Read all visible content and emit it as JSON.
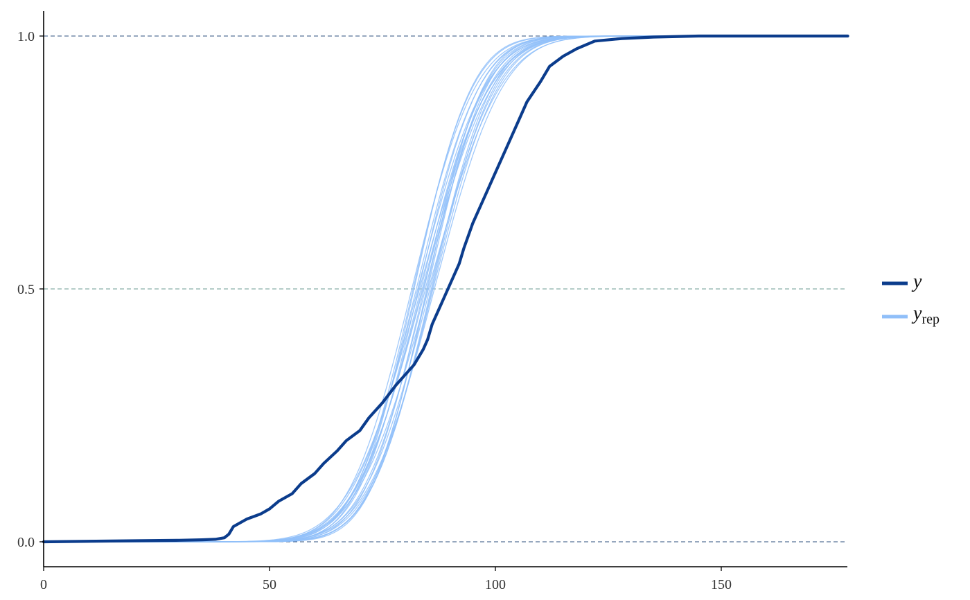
{
  "chart_data": {
    "type": "line",
    "xlim": [
      0,
      178
    ],
    "ylim": [
      0,
      1
    ],
    "x_ticks": [
      0,
      50,
      100,
      150
    ],
    "y_ticks": [
      0.0,
      0.5,
      1.0
    ],
    "x_tick_labels": [
      "0",
      "50",
      "100",
      "150"
    ],
    "y_tick_labels": [
      "0.0",
      "0.5",
      "1.0"
    ],
    "hlines": [
      0.0,
      0.5,
      1.0
    ],
    "grid": "dashed horizontal reference lines at 0.0, 0.5, 1.0",
    "legend_position": "right",
    "legend": [
      {
        "key": "y",
        "label": "y",
        "color": "#0b3c8c"
      },
      {
        "key": "yrep",
        "label": "y",
        "subscript": "rep",
        "color": "#90bff9"
      }
    ],
    "series": [
      {
        "key": "y",
        "name": "y",
        "color": "#0b3c8c",
        "x": [
          0,
          20,
          30,
          35,
          38,
          40,
          41,
          42,
          45,
          48,
          50,
          52,
          55,
          57,
          60,
          62,
          65,
          67,
          70,
          72,
          75,
          78,
          80,
          82,
          84,
          85,
          86,
          88,
          90,
          92,
          93,
          95,
          98,
          100,
          103,
          105,
          107,
          110,
          112,
          115,
          118,
          122,
          128,
          135,
          145,
          178
        ],
        "y": [
          0.0,
          0.002,
          0.003,
          0.004,
          0.005,
          0.008,
          0.015,
          0.03,
          0.045,
          0.055,
          0.065,
          0.08,
          0.095,
          0.115,
          0.135,
          0.155,
          0.18,
          0.2,
          0.22,
          0.245,
          0.275,
          0.31,
          0.33,
          0.35,
          0.38,
          0.4,
          0.43,
          0.47,
          0.51,
          0.55,
          0.58,
          0.63,
          0.69,
          0.73,
          0.79,
          0.83,
          0.87,
          0.91,
          0.94,
          0.96,
          0.975,
          0.99,
          0.995,
          0.998,
          1.0,
          1.0
        ]
      },
      {
        "key": "yrep",
        "name": "yrep",
        "color": "#90bff9",
        "draws": [
          {
            "mu": 84.5,
            "s": 11.0
          },
          {
            "mu": 83.0,
            "s": 10.5
          },
          {
            "mu": 85.5,
            "s": 11.5
          },
          {
            "mu": 82.0,
            "s": 10.0
          },
          {
            "mu": 86.0,
            "s": 10.8
          },
          {
            "mu": 84.0,
            "s": 12.0
          },
          {
            "mu": 83.5,
            "s": 11.2
          },
          {
            "mu": 85.0,
            "s": 10.2
          },
          {
            "mu": 81.5,
            "s": 11.0
          },
          {
            "mu": 86.5,
            "s": 11.8
          },
          {
            "mu": 84.8,
            "s": 9.8
          },
          {
            "mu": 82.8,
            "s": 11.6
          },
          {
            "mu": 85.8,
            "s": 10.6
          },
          {
            "mu": 83.2,
            "s": 12.2
          },
          {
            "mu": 84.2,
            "s": 10.4
          },
          {
            "mu": 82.5,
            "s": 10.9
          },
          {
            "mu": 86.2,
            "s": 11.3
          },
          {
            "mu": 83.8,
            "s": 11.7
          },
          {
            "mu": 85.2,
            "s": 12.4
          },
          {
            "mu": 81.8,
            "s": 10.3
          }
        ]
      }
    ]
  }
}
